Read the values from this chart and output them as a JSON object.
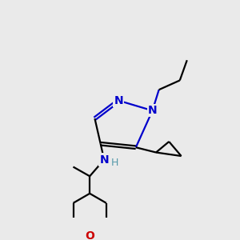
{
  "bg_color": "#eaeaea",
  "bond_color": "#000000",
  "N_color": "#0000cc",
  "O_color": "#cc0000",
  "NH_color": "#5599aa",
  "bond_lw": 1.6,
  "dbo": 0.02,
  "figsize": [
    3.0,
    3.0
  ],
  "dpi": 100,
  "xlim": [
    0.0,
    3.0
  ],
  "ylim": [
    0.0,
    3.0
  ]
}
